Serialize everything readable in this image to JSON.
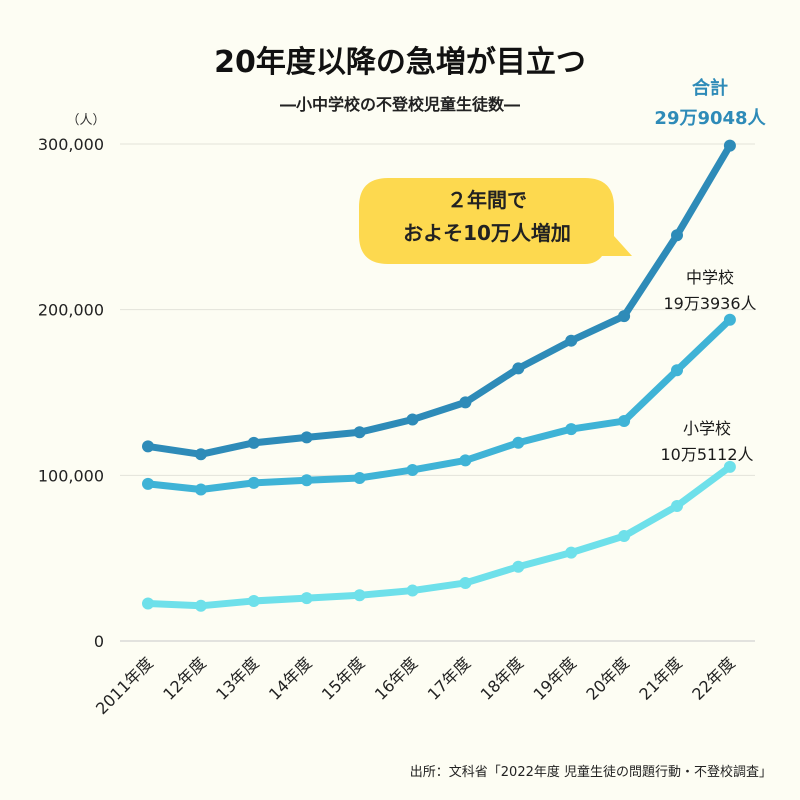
{
  "chart_data": {
    "type": "line",
    "title": "20年度以降の急増が目立つ",
    "subtitle": "―小中学校の不登校児童生徒数―",
    "ylabel": "（人）",
    "ylim": [
      0,
      300000
    ],
    "yticks": [
      0,
      100000,
      200000,
      300000
    ],
    "ytick_labels": [
      "0",
      "100,000",
      "200,000",
      "300,000"
    ],
    "grid": true,
    "categories": [
      "2011年度",
      "12年度",
      "13年度",
      "14年度",
      "15年度",
      "16年度",
      "17年度",
      "18年度",
      "19年度",
      "20年度",
      "21年度",
      "22年度"
    ],
    "series": [
      {
        "name": "合計",
        "end_label_lines": [
          "合計",
          "29万9048人"
        ],
        "color": "#2e8bb8",
        "label_color": "#2e8bb8",
        "values": [
          117458,
          112689,
          119617,
          122897,
          125991,
          133683,
          144031,
          164528,
          181272,
          196127,
          244940,
          299048
        ]
      },
      {
        "name": "中学校",
        "end_label_lines": [
          "中学校",
          "19万3936人"
        ],
        "color": "#3fb3d6",
        "label_color": "#1a1a1a",
        "values": [
          94836,
          91446,
          95442,
          97033,
          98408,
          103235,
          108999,
          119687,
          127922,
          132777,
          163442,
          193936
        ]
      },
      {
        "name": "小学校",
        "end_label_lines": [
          "小学校",
          "10万5112人"
        ],
        "color": "#6ee0ea",
        "label_color": "#1a1a1a",
        "values": [
          22622,
          21243,
          24175,
          25864,
          27583,
          30448,
          35032,
          44841,
          53350,
          63350,
          81498,
          105112
        ]
      }
    ],
    "annotation": {
      "lines": [
        "２年間で",
        "およそ10万人増加"
      ],
      "color": "#fdd94f"
    },
    "source": "出所：文科省「2022年度 児童生徒の問題行動・不登校調査」"
  }
}
